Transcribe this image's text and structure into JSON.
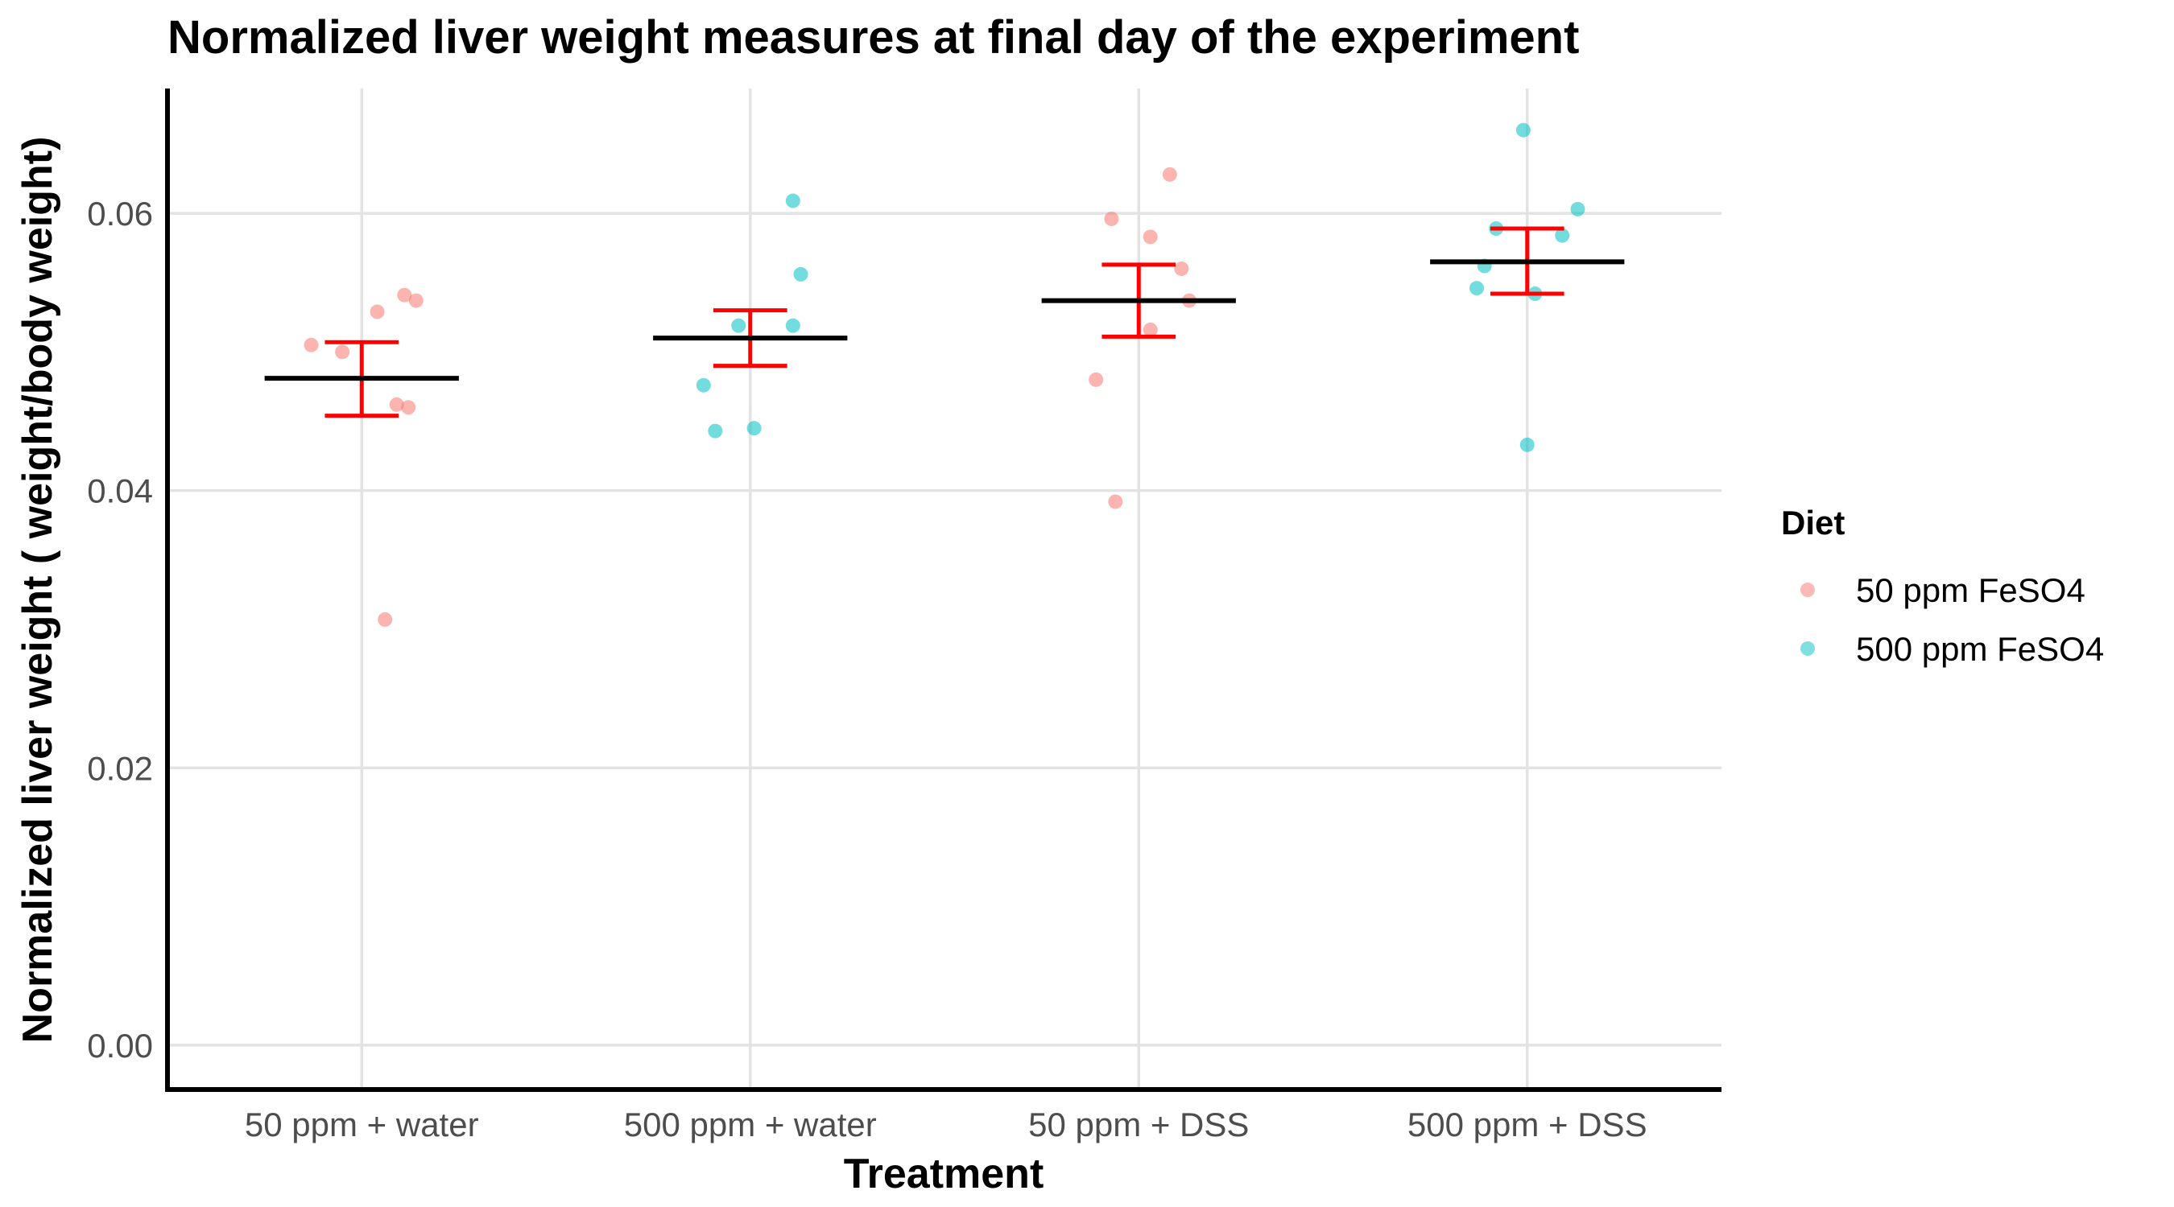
{
  "chart_data": {
    "type": "scatter",
    "title": "Normalized liver weight measures at final day of the experiment",
    "xlabel": "Treatment",
    "ylabel": "Normalized liver weight ( weight/body weight)",
    "categories": [
      "50 ppm + water",
      "500 ppm + water",
      "50 ppm + DSS",
      "500 ppm + DSS"
    ],
    "yticks": [
      0,
      0.02,
      0.04,
      0.06
    ],
    "ytick_labels": [
      "0.00",
      "0.02",
      "0.04",
      "0.06"
    ],
    "ylim": [
      -0.0032,
      0.069
    ],
    "grid": true,
    "legend": {
      "title": "Diet",
      "position": "right",
      "entries": [
        {
          "label": "50 ppm FeSO4",
          "color": "#F8766D"
        },
        {
          "label": "500 ppm FeSO4",
          "color": "#00BFC4"
        }
      ]
    },
    "series": [
      {
        "name": "50 ppm FeSO4",
        "color": "#F8766D",
        "points": [
          {
            "category": 0,
            "jitter": -0.13,
            "y": 0.0505
          },
          {
            "category": 0,
            "jitter": -0.05,
            "y": 0.05
          },
          {
            "category": 0,
            "jitter": 0.04,
            "y": 0.0529
          },
          {
            "category": 0,
            "jitter": 0.11,
            "y": 0.0541
          },
          {
            "category": 0,
            "jitter": 0.14,
            "y": 0.0537
          },
          {
            "category": 0,
            "jitter": 0.09,
            "y": 0.0462
          },
          {
            "category": 0,
            "jitter": 0.12,
            "y": 0.046
          },
          {
            "category": 0,
            "jitter": 0.06,
            "y": 0.0307
          },
          {
            "category": 2,
            "jitter": -0.11,
            "y": 0.048
          },
          {
            "category": 2,
            "jitter": -0.07,
            "y": 0.0596
          },
          {
            "category": 2,
            "jitter": -0.06,
            "y": 0.0392
          },
          {
            "category": 2,
            "jitter": 0.03,
            "y": 0.0583
          },
          {
            "category": 2,
            "jitter": 0.03,
            "y": 0.0516
          },
          {
            "category": 2,
            "jitter": 0.08,
            "y": 0.0628
          },
          {
            "category": 2,
            "jitter": 0.11,
            "y": 0.056
          },
          {
            "category": 2,
            "jitter": 0.13,
            "y": 0.0537
          }
        ]
      },
      {
        "name": "500 ppm FeSO4",
        "color": "#00BFC4",
        "points": [
          {
            "category": 1,
            "jitter": -0.12,
            "y": 0.0476
          },
          {
            "category": 1,
            "jitter": -0.09,
            "y": 0.0443
          },
          {
            "category": 1,
            "jitter": -0.03,
            "y": 0.0519
          },
          {
            "category": 1,
            "jitter": 0.01,
            "y": 0.0445
          },
          {
            "category": 1,
            "jitter": 0.11,
            "y": 0.0519
          },
          {
            "category": 1,
            "jitter": 0.11,
            "y": 0.0609
          },
          {
            "category": 1,
            "jitter": 0.13,
            "y": 0.0556
          },
          {
            "category": 3,
            "jitter": -0.13,
            "y": 0.0546
          },
          {
            "category": 3,
            "jitter": -0.11,
            "y": 0.0562
          },
          {
            "category": 3,
            "jitter": -0.08,
            "y": 0.0589
          },
          {
            "category": 3,
            "jitter": -0.01,
            "y": 0.066
          },
          {
            "category": 3,
            "jitter": 0.0,
            "y": 0.0433
          },
          {
            "category": 3,
            "jitter": 0.02,
            "y": 0.0542
          },
          {
            "category": 3,
            "jitter": 0.09,
            "y": 0.0584
          },
          {
            "category": 3,
            "jitter": 0.13,
            "y": 0.0603
          }
        ]
      }
    ],
    "summary": [
      {
        "category": "50 ppm + water",
        "mean": 0.0481,
        "lower": 0.0454,
        "upper": 0.0507
      },
      {
        "category": "500 ppm + water",
        "mean": 0.051,
        "lower": 0.049,
        "upper": 0.053
      },
      {
        "category": "50 ppm + DSS",
        "mean": 0.0537,
        "lower": 0.0511,
        "upper": 0.0563
      },
      {
        "category": "500 ppm + DSS",
        "mean": 0.0565,
        "lower": 0.0542,
        "upper": 0.0589
      }
    ],
    "mean_color": "#000000",
    "errorbar_color": "#FF0000"
  }
}
